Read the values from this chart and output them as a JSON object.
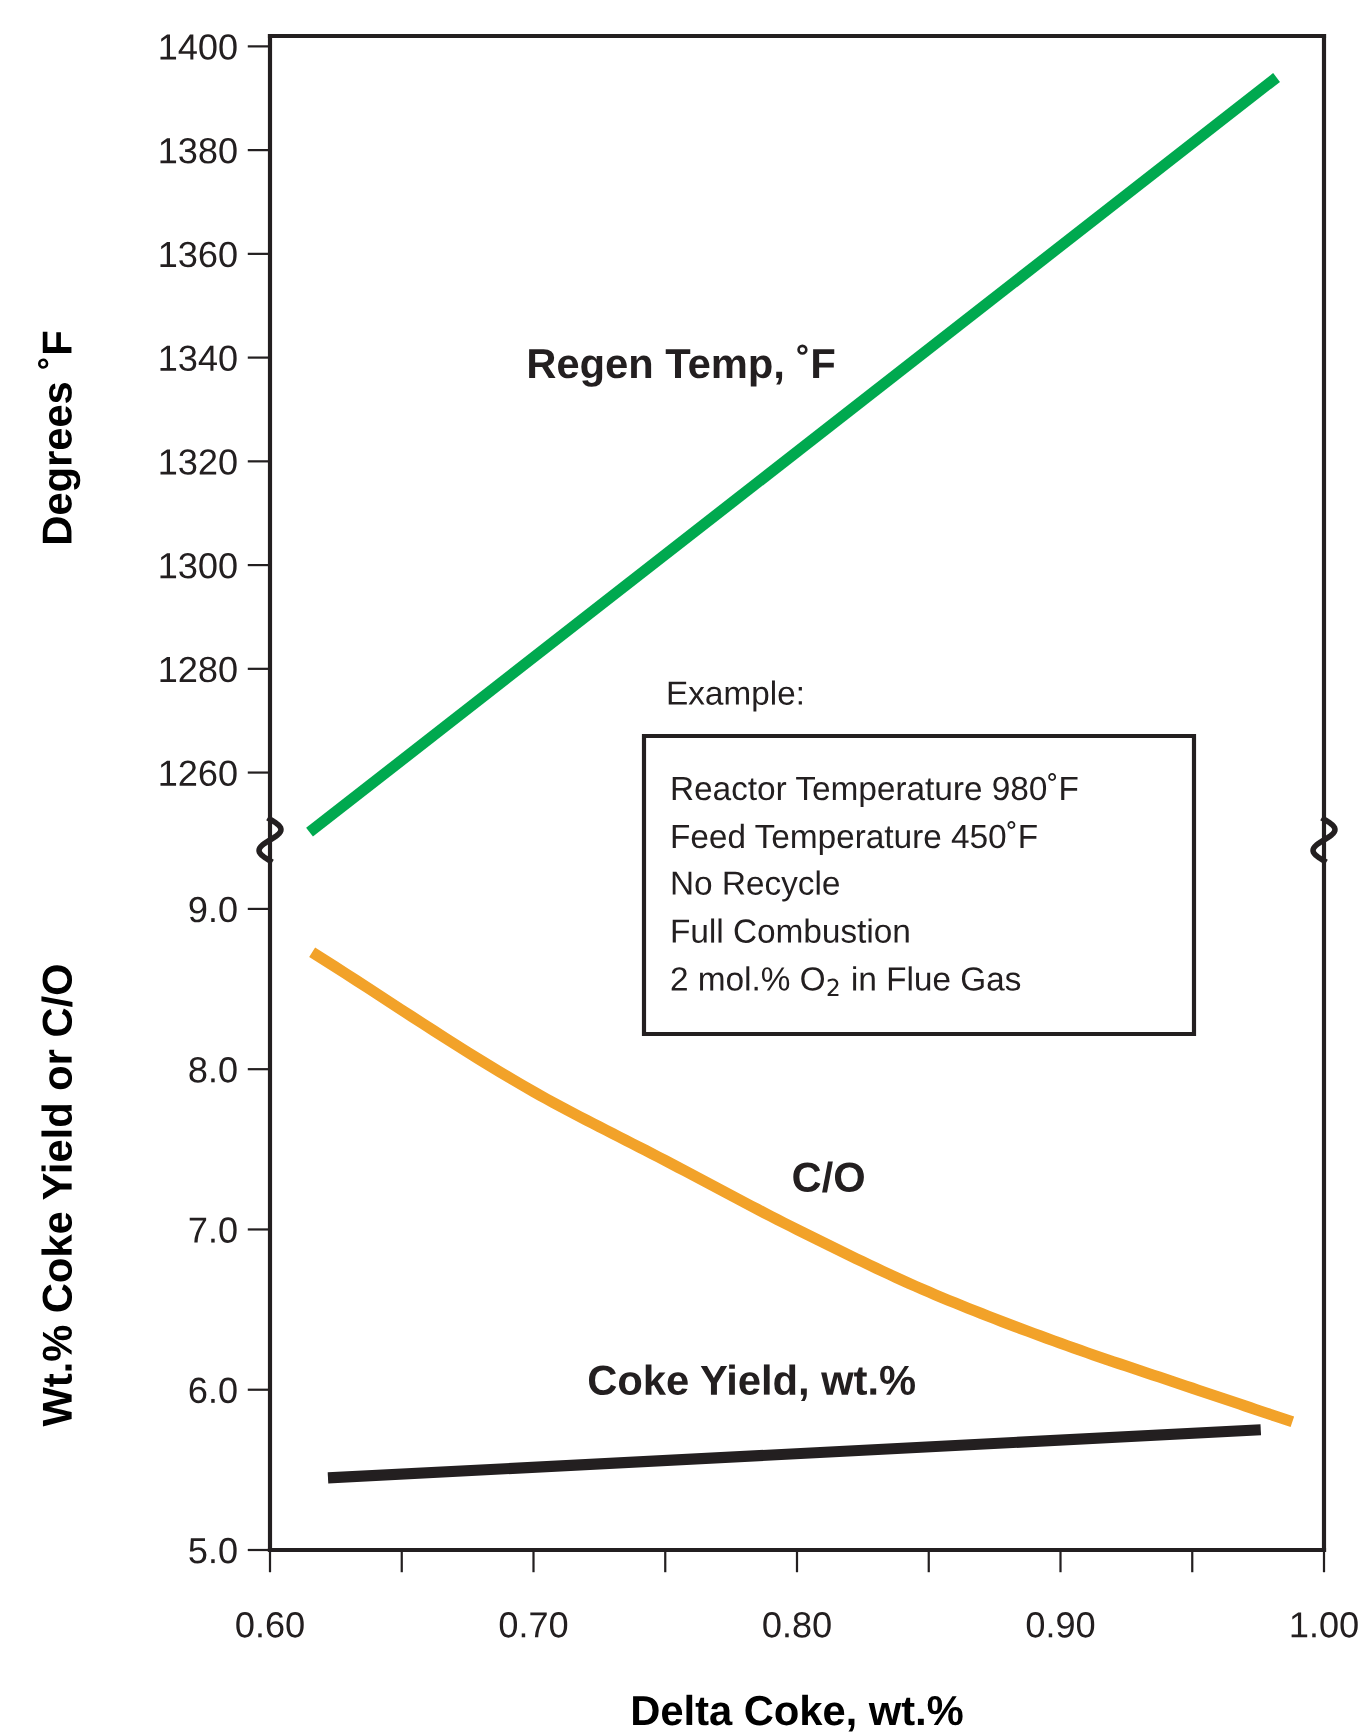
{
  "chart_data": [
    {
      "type": "line",
      "ylabel": "Degrees ˚F",
      "xlim": [
        0.6,
        1.0
      ],
      "ylim": [
        1247,
        1402
      ],
      "yticks": [
        1260,
        1280,
        1300,
        1320,
        1340,
        1360,
        1380,
        1400
      ],
      "tick_labels": "y",
      "grid": false,
      "legend": false,
      "marker": "none",
      "line_style": "solid",
      "series": [
        {
          "name": "Regen Temp, ˚F",
          "color": "#00a94f",
          "x": [
            0.615,
            0.982
          ],
          "values": [
            1248.5,
            1394
          ]
        }
      ]
    },
    {
      "type": "line",
      "xlabel": "Delta Coke, wt.%",
      "ylabel": "Wt.% Coke Yield or C/O",
      "xlim": [
        0.6,
        1.0
      ],
      "ylim": [
        5.0,
        9.43
      ],
      "xticks": [
        {
          "value": 0.6,
          "label": "0.60"
        },
        {
          "value": 0.65,
          "label": null
        },
        {
          "value": 0.7,
          "label": "0.70"
        },
        {
          "value": 0.75,
          "label": null
        },
        {
          "value": 0.8,
          "label": "0.80"
        },
        {
          "value": 0.85,
          "label": null
        },
        {
          "value": 0.9,
          "label": "0.90"
        },
        {
          "value": 0.95,
          "label": null
        },
        {
          "value": 1.0,
          "label": "1.00"
        }
      ],
      "yticks": [
        {
          "value": 5,
          "label": "5.0"
        },
        {
          "value": 6,
          "label": "6.0"
        },
        {
          "value": 7,
          "label": "7.0"
        },
        {
          "value": 8,
          "label": "8.0"
        },
        {
          "value": 9,
          "label": "9.0"
        }
      ],
      "grid": false,
      "legend": false,
      "marker": "none",
      "line_style": "solid",
      "series": [
        {
          "name": "C/O",
          "color": "#f2a229",
          "x": [
            0.616,
            0.7,
            0.75,
            0.8,
            0.85,
            0.9,
            0.95,
            0.988
          ],
          "values": [
            8.73,
            7.86,
            7.43,
            7.0,
            6.61,
            6.29,
            6.01,
            5.8
          ]
        },
        {
          "name": "Coke Yield, wt.%",
          "color": "#231f20",
          "x": [
            0.622,
            0.976
          ],
          "values": [
            5.45,
            5.75
          ]
        }
      ],
      "annotations": [
        "Example:",
        "Reactor Temperature 980˚F",
        "Feed Temperature 450˚F",
        "No Recycle",
        "Full Combustion",
        "2 mol.% O$_{2}$ in Flue Gas"
      ]
    }
  ]
}
